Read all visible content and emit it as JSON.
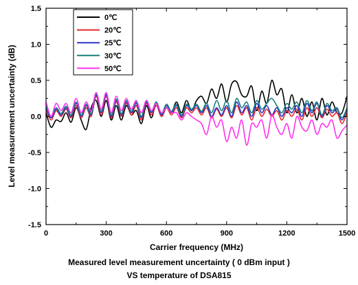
{
  "chart_data": {
    "type": "line",
    "title": "",
    "xlabel": "Carrier frequency (MHz)",
    "ylabel": "Level measurement uncertainty (dB)",
    "xlim": [
      0,
      1500
    ],
    "ylim": [
      -1.5,
      1.5
    ],
    "xticks": [
      "0",
      "300",
      "600",
      "900",
      "1200",
      "1500"
    ],
    "yticks": [
      "-1.5",
      "-1.0",
      "-0.5",
      "0.0",
      "0.5",
      "1.0",
      "1.5"
    ],
    "grid": false,
    "legend_position": "top-left",
    "x": [
      0,
      25,
      50,
      75,
      100,
      125,
      150,
      175,
      200,
      225,
      250,
      275,
      300,
      325,
      350,
      375,
      400,
      425,
      450,
      475,
      500,
      525,
      550,
      575,
      600,
      625,
      650,
      675,
      700,
      725,
      750,
      775,
      800,
      825,
      850,
      875,
      900,
      925,
      950,
      975,
      1000,
      1025,
      1050,
      1075,
      1100,
      1125,
      1150,
      1175,
      1200,
      1225,
      1250,
      1275,
      1300,
      1325,
      1350,
      1375,
      1400,
      1425,
      1450,
      1475,
      1500
    ],
    "series": [
      {
        "name": "0℃",
        "color": "#000000",
        "values": [
          0.05,
          -0.15,
          -0.05,
          -0.07,
          0.05,
          -0.08,
          0.12,
          -0.05,
          -0.18,
          0.12,
          0.22,
          0.0,
          0.22,
          -0.05,
          0.15,
          -0.05,
          0.15,
          0.02,
          0.08,
          -0.1,
          0.15,
          -0.02,
          0.18,
          0.0,
          0.12,
          0.05,
          0.2,
          0.05,
          0.22,
          0.08,
          0.22,
          0.28,
          0.18,
          0.38,
          0.25,
          0.45,
          0.2,
          0.45,
          0.48,
          0.3,
          0.28,
          0.42,
          0.08,
          0.35,
          0.18,
          0.5,
          0.3,
          0.38,
          0.05,
          0.3,
          0.05,
          0.25,
          0.0,
          0.2,
          -0.05,
          0.25,
          0.02,
          0.2,
          0.05,
          0.05,
          0.28
        ]
      },
      {
        "name": "20℃",
        "color": "#e8262b",
        "values": [
          0.1,
          -0.05,
          0.08,
          0.0,
          0.1,
          -0.02,
          0.15,
          -0.02,
          0.12,
          0.0,
          0.28,
          0.02,
          0.28,
          -0.02,
          0.2,
          0.0,
          0.18,
          0.02,
          0.15,
          -0.05,
          0.18,
          0.02,
          0.15,
          0.0,
          0.12,
          0.02,
          0.12,
          -0.02,
          0.12,
          0.05,
          0.12,
          0.02,
          0.12,
          -0.02,
          0.1,
          0.0,
          0.12,
          -0.02,
          0.15,
          0.02,
          0.12,
          -0.05,
          0.12,
          0.0,
          0.1,
          0.0,
          0.08,
          -0.05,
          0.08,
          0.0,
          0.1,
          -0.05,
          0.12,
          0.0,
          0.12,
          -0.02,
          0.1,
          0.0,
          0.05,
          -0.1,
          0.05
        ]
      },
      {
        "name": "25℃",
        "color": "#2a35c9",
        "values": [
          0.12,
          -0.02,
          0.1,
          0.02,
          0.12,
          0.0,
          0.18,
          0.0,
          0.15,
          0.02,
          0.3,
          0.05,
          0.3,
          0.0,
          0.22,
          0.02,
          0.2,
          0.05,
          0.18,
          -0.02,
          0.2,
          0.05,
          0.18,
          0.02,
          0.15,
          0.05,
          0.15,
          0.0,
          0.15,
          0.08,
          0.15,
          0.05,
          0.15,
          0.0,
          0.12,
          0.02,
          0.15,
          0.0,
          0.2,
          0.05,
          0.15,
          0.0,
          0.18,
          0.05,
          0.15,
          0.02,
          0.12,
          0.0,
          0.12,
          0.05,
          0.15,
          0.0,
          0.18,
          0.05,
          0.18,
          0.0,
          0.15,
          0.05,
          0.1,
          -0.05,
          0.1
        ]
      },
      {
        "name": "30℃",
        "color": "#17807a",
        "values": [
          0.14,
          0.0,
          0.12,
          0.04,
          0.14,
          0.02,
          0.2,
          0.02,
          0.17,
          0.04,
          0.32,
          0.07,
          0.32,
          0.02,
          0.24,
          0.04,
          0.22,
          0.07,
          0.2,
          0.0,
          0.22,
          0.07,
          0.2,
          0.04,
          0.17,
          0.07,
          0.17,
          0.02,
          0.17,
          0.1,
          0.17,
          0.07,
          0.18,
          0.05,
          0.22,
          0.08,
          0.22,
          0.05,
          0.25,
          0.12,
          0.2,
          0.05,
          0.22,
          0.1,
          0.18,
          0.25,
          0.15,
          0.05,
          0.18,
          0.1,
          0.2,
          0.05,
          0.22,
          0.08,
          0.2,
          0.02,
          0.18,
          0.08,
          0.12,
          -0.02,
          0.12
        ]
      },
      {
        "name": "50℃",
        "color": "#ff2fef",
        "values": [
          0.2,
          0.0,
          0.18,
          0.08,
          0.18,
          0.05,
          0.25,
          0.05,
          0.2,
          0.08,
          0.33,
          0.1,
          0.33,
          0.05,
          0.28,
          0.08,
          0.25,
          0.1,
          0.22,
          0.05,
          0.22,
          0.08,
          0.18,
          0.05,
          0.12,
          0.05,
          0.05,
          -0.05,
          0.05,
          0.0,
          -0.05,
          -0.1,
          -0.25,
          0.0,
          -0.15,
          -0.05,
          -0.35,
          -0.15,
          -0.3,
          -0.05,
          -0.4,
          -0.1,
          -0.15,
          -0.05,
          -0.3,
          0.02,
          -0.15,
          -0.25,
          -0.1,
          -0.3,
          0.0,
          -0.15,
          -0.2,
          -0.05,
          -0.25,
          -0.1,
          -0.15,
          -0.05,
          -0.3,
          -0.2,
          -0.12
        ]
      }
    ]
  },
  "caption": {
    "line1": "Measured level measurement uncertainty ( 0 dBm input )",
    "line2": "VS temperature of DSA815"
  }
}
